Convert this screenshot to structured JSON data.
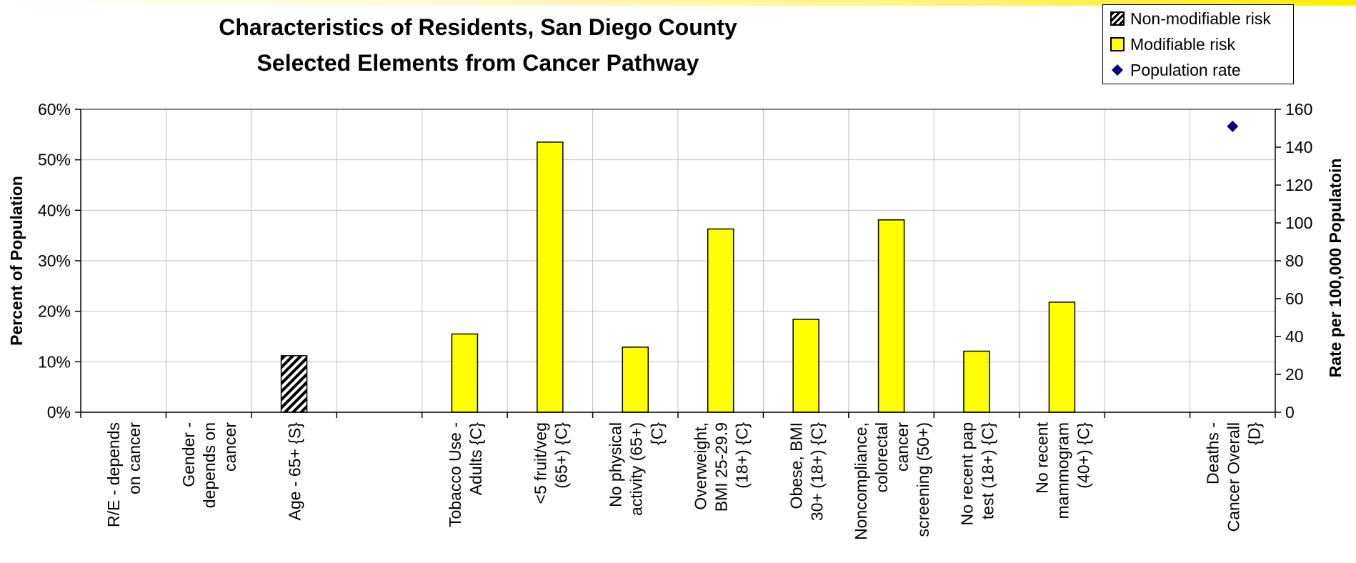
{
  "title_line1": "Characteristics of Residents, San Diego County",
  "title_line2": "Selected Elements from Cancer Pathway",
  "legend": {
    "items": [
      {
        "label": "Non-modifiable risk",
        "symbol": "hatched-square"
      },
      {
        "label": "Modifiable risk",
        "symbol": "yellow-square"
      },
      {
        "label": "Population rate",
        "symbol": "navy-diamond"
      }
    ]
  },
  "colors": {
    "modifiable": "#ffff00",
    "non_modifiable": "hatched-black-white",
    "population_rate": "#000080",
    "grid": "#c0c0c0"
  },
  "chart_data": {
    "type": "bar",
    "title": "Characteristics of Residents, San Diego County Selected Elements from Cancer Pathway",
    "ylabel": "Percent of Population",
    "y2label": "Rate per 100,000 Populatoin",
    "ylim": [
      0,
      60
    ],
    "y2lim": [
      0,
      160
    ],
    "yticks": [
      "0%",
      "10%",
      "20%",
      "30%",
      "40%",
      "50%",
      "60%"
    ],
    "y2ticks": [
      "0",
      "20",
      "40",
      "60",
      "80",
      "100",
      "120",
      "140",
      "160"
    ],
    "grid": true,
    "legend_position": "top-right",
    "categories": [
      [
        "R/E - depends",
        "on cancer"
      ],
      [
        "Gender -",
        "depends on",
        "cancer"
      ],
      [
        "Age - 65+ {S}"
      ],
      [
        ""
      ],
      [
        "Tobacco Use -",
        "Adults {C}"
      ],
      [
        "<5 fruit/veg",
        "(65+) {C}"
      ],
      [
        "No physical",
        "activity (65+)",
        "{C}"
      ],
      [
        "Overweight,",
        "BMI 25-29.9",
        "(18+) {C}"
      ],
      [
        "Obese, BMI",
        "30+ (18+) {C}"
      ],
      [
        "Noncompliance,",
        "colorectal",
        "cancer",
        "screening (50+)"
      ],
      [
        "No recent pap",
        "test (18+) {C}"
      ],
      [
        "No recent",
        "mammogram",
        "(40+) {C}"
      ],
      [
        ""
      ],
      [
        "Deaths -",
        "Cancer Overall",
        "{D}"
      ]
    ],
    "series": [
      {
        "name": "Non-modifiable risk",
        "axis": "left",
        "values": [
          null,
          null,
          11.2,
          null,
          null,
          null,
          null,
          null,
          null,
          null,
          null,
          null,
          null,
          null
        ]
      },
      {
        "name": "Modifiable risk",
        "axis": "left",
        "values": [
          null,
          null,
          null,
          null,
          15.5,
          53.5,
          12.9,
          36.3,
          18.4,
          38.1,
          12.1,
          21.8,
          null,
          null
        ]
      },
      {
        "name": "Population rate",
        "axis": "right",
        "values": [
          null,
          null,
          null,
          null,
          null,
          null,
          null,
          null,
          null,
          null,
          null,
          null,
          null,
          151
        ]
      }
    ]
  }
}
